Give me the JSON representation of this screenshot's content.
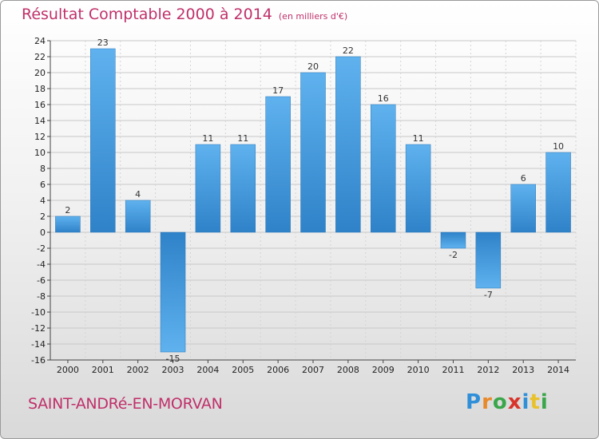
{
  "chart_data": {
    "type": "bar",
    "title": "Résultat Comptable 2000 à 2014",
    "subtitle": "(en milliers d'€)",
    "categories": [
      "2000",
      "2001",
      "2002",
      "2003",
      "2004",
      "2005",
      "2006",
      "2007",
      "2008",
      "2009",
      "2010",
      "2011",
      "2012",
      "2013",
      "2014"
    ],
    "values": [
      2,
      23,
      4,
      -15,
      11,
      11,
      17,
      20,
      22,
      16,
      11,
      -2,
      -7,
      6,
      10
    ],
    "ylim": [
      -16,
      24
    ],
    "yticks": [
      24,
      22,
      20,
      18,
      16,
      14,
      12,
      10,
      8,
      6,
      4,
      2,
      0,
      -2,
      -4,
      -6,
      -8,
      -10,
      -12,
      -14,
      -16
    ],
    "grid": true,
    "bar_color": "#3d8fd6",
    "bar_color_light": "#5fb2ee"
  },
  "footer": {
    "commune": "SAINT-ANDRé-EN-MORVAN",
    "brand_letters": [
      {
        "char": "P",
        "color": "#2f8fd8"
      },
      {
        "char": "r",
        "color": "#e8892b"
      },
      {
        "char": "o",
        "color": "#3aa64a"
      },
      {
        "char": "x",
        "color": "#d8342c"
      },
      {
        "char": "i",
        "color": "#2f8fd8"
      },
      {
        "char": "t",
        "color": "#e8c12b"
      },
      {
        "char": "i",
        "color": "#3aa64a"
      }
    ]
  },
  "colors": {
    "title": "#c0306a"
  }
}
